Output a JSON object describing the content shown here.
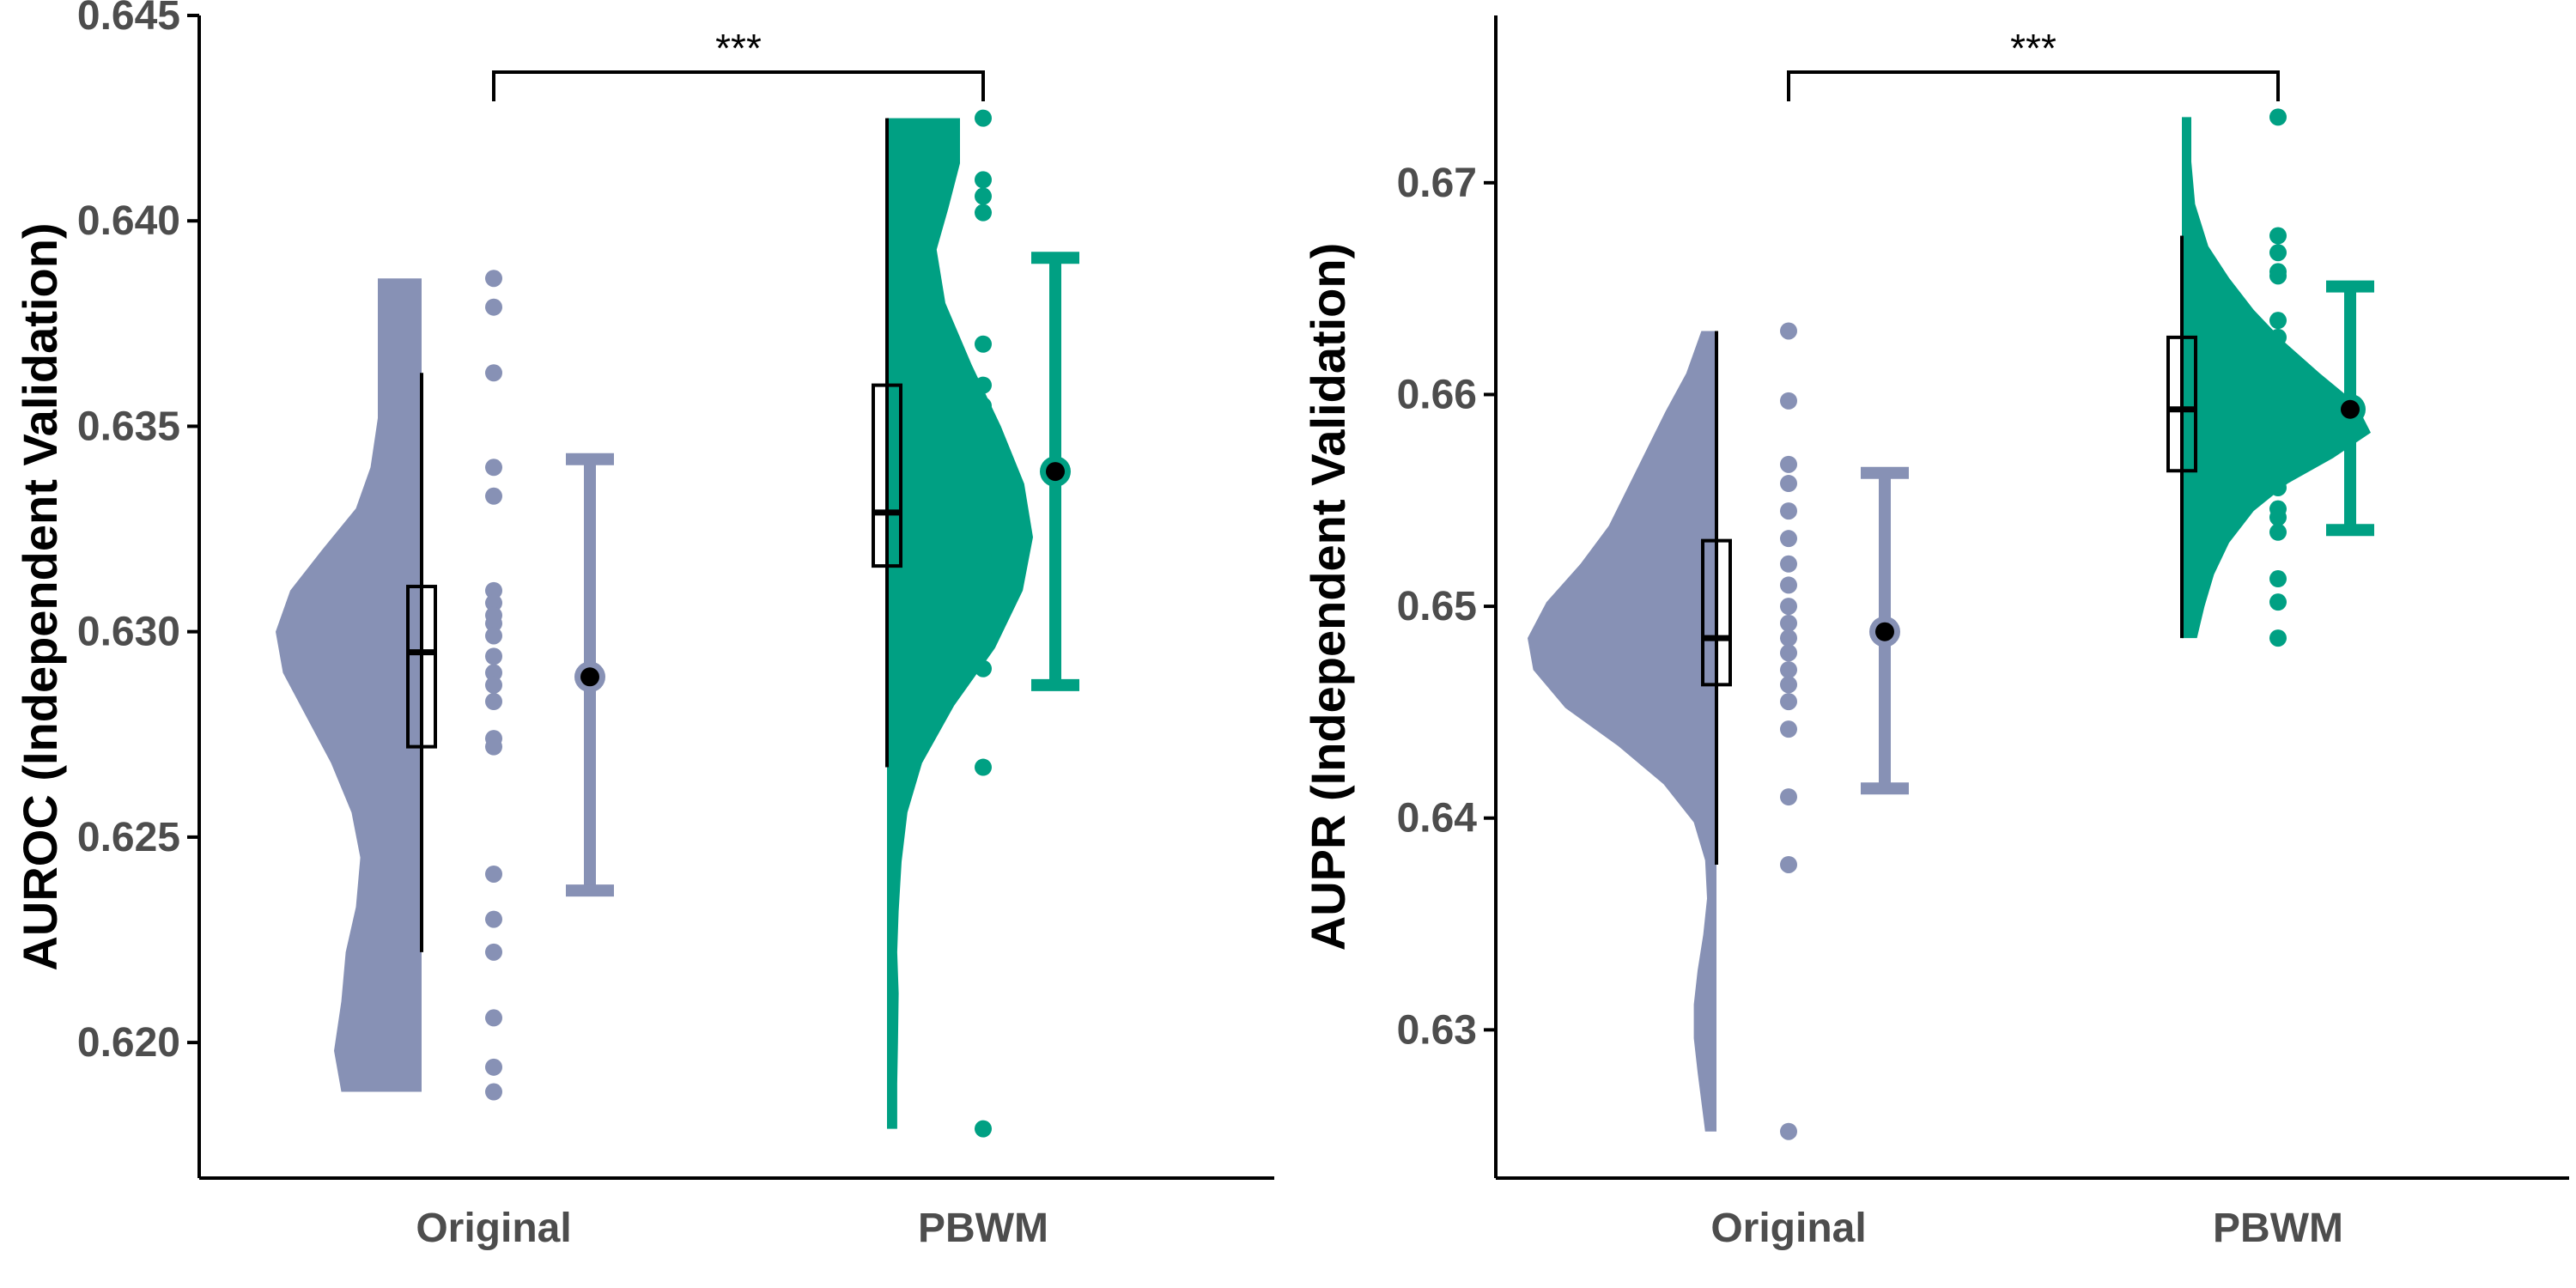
{
  "colors": {
    "original": "#8791b5",
    "pbwm": "#00a083",
    "axis": "#000000",
    "tick_text": "#4d4d4d"
  },
  "chart_data": [
    {
      "type": "raincloud",
      "ylabel": "AUROC (Independent Validation)",
      "categories": [
        "Original",
        "PBWM"
      ],
      "ylim": [
        0.6167,
        0.645
      ],
      "yticks": [
        0.62,
        0.625,
        0.63,
        0.635,
        0.64,
        0.645
      ],
      "ytick_labels": [
        "0.620",
        "0.625",
        "0.630",
        "0.635",
        "0.640",
        "0.645"
      ],
      "grid": false,
      "significance": "***",
      "series": [
        {
          "category": "Original",
          "points": [
            0.6386,
            0.6379,
            0.6363,
            0.634,
            0.6333,
            0.631,
            0.6307,
            0.6304,
            0.6302,
            0.6299,
            0.6294,
            0.629,
            0.6287,
            0.6283,
            0.6274,
            0.6272,
            0.6241,
            0.623,
            0.6222,
            0.6206,
            0.6194,
            0.6188
          ],
          "box": {
            "min": 0.6222,
            "q1": 0.6272,
            "median": 0.6295,
            "q3": 0.6311,
            "max": 0.6363
          },
          "mean": 0.6289,
          "error": [
            0.6237,
            0.6342
          ],
          "density": [
            [
              0.6188,
              0.55
            ],
            [
              0.6198,
              0.6
            ],
            [
              0.621,
              0.55
            ],
            [
              0.6222,
              0.52
            ],
            [
              0.6233,
              0.45
            ],
            [
              0.6245,
              0.42
            ],
            [
              0.6256,
              0.48
            ],
            [
              0.6268,
              0.62
            ],
            [
              0.628,
              0.8
            ],
            [
              0.629,
              0.95
            ],
            [
              0.63,
              1.0
            ],
            [
              0.631,
              0.9
            ],
            [
              0.632,
              0.68
            ],
            [
              0.633,
              0.45
            ],
            [
              0.634,
              0.35
            ],
            [
              0.6352,
              0.3
            ],
            [
              0.6365,
              0.3
            ],
            [
              0.6376,
              0.3
            ],
            [
              0.6386,
              0.3
            ]
          ]
        },
        {
          "category": "PBWM",
          "points": [
            0.6425,
            0.641,
            0.6406,
            0.6402,
            0.637,
            0.636,
            0.6355,
            0.6352,
            0.6348,
            0.6343,
            0.6329,
            0.6326,
            0.6322,
            0.6318,
            0.6315,
            0.6313,
            0.6297,
            0.6291,
            0.6267,
            0.6179
          ],
          "box": {
            "min": 0.6267,
            "q1": 0.6316,
            "median": 0.6329,
            "q3": 0.636,
            "max": 0.6425
          },
          "mean": 0.6339,
          "error": [
            0.6287,
            0.6391
          ],
          "density": [
            [
              0.6179,
              0.07
            ],
            [
              0.619,
              0.07
            ],
            [
              0.62,
              0.075
            ],
            [
              0.6212,
              0.08
            ],
            [
              0.6222,
              0.07
            ],
            [
              0.6232,
              0.08
            ],
            [
              0.6244,
              0.1
            ],
            [
              0.6256,
              0.14
            ],
            [
              0.6268,
              0.24
            ],
            [
              0.6282,
              0.46
            ],
            [
              0.6296,
              0.74
            ],
            [
              0.631,
              0.93
            ],
            [
              0.6323,
              1.0
            ],
            [
              0.6336,
              0.94
            ],
            [
              0.635,
              0.78
            ],
            [
              0.6365,
              0.58
            ],
            [
              0.638,
              0.4
            ],
            [
              0.6393,
              0.34
            ],
            [
              0.6403,
              0.42
            ],
            [
              0.6414,
              0.5
            ],
            [
              0.6425,
              0.5
            ]
          ]
        }
      ]
    },
    {
      "type": "raincloud",
      "ylabel": "AUPR (Independent Validation)",
      "categories": [
        "Original",
        "PBWM"
      ],
      "ylim": [
        0.623,
        0.6779
      ],
      "yticks": [
        0.63,
        0.64,
        0.65,
        0.66,
        0.67
      ],
      "ytick_labels": [
        "0.63",
        "0.64",
        "0.65",
        "0.66",
        "0.67"
      ],
      "grid": false,
      "significance": "***",
      "series": [
        {
          "category": "Original",
          "points": [
            0.663,
            0.6597,
            0.6567,
            0.6558,
            0.6545,
            0.6532,
            0.652,
            0.651,
            0.65,
            0.6492,
            0.6485,
            0.6478,
            0.647,
            0.6463,
            0.6455,
            0.6442,
            0.641,
            0.6378,
            0.6252
          ],
          "box": {
            "min": 0.6378,
            "q1": 0.6463,
            "median": 0.6485,
            "q3": 0.6531,
            "max": 0.663
          },
          "mean": 0.6488,
          "error": [
            0.6414,
            0.6563
          ],
          "density": [
            [
              0.6252,
              0.06
            ],
            [
              0.6266,
              0.08
            ],
            [
              0.628,
              0.1
            ],
            [
              0.6296,
              0.12
            ],
            [
              0.6312,
              0.12
            ],
            [
              0.6328,
              0.1
            ],
            [
              0.6345,
              0.07
            ],
            [
              0.6362,
              0.05
            ],
            [
              0.638,
              0.06
            ],
            [
              0.6398,
              0.12
            ],
            [
              0.6416,
              0.28
            ],
            [
              0.6434,
              0.52
            ],
            [
              0.6452,
              0.8
            ],
            [
              0.647,
              0.97
            ],
            [
              0.6485,
              1.0
            ],
            [
              0.6502,
              0.9
            ],
            [
              0.652,
              0.72
            ],
            [
              0.6538,
              0.57
            ],
            [
              0.6556,
              0.47
            ],
            [
              0.6574,
              0.37
            ],
            [
              0.6592,
              0.27
            ],
            [
              0.661,
              0.16
            ],
            [
              0.663,
              0.08
            ]
          ]
        },
        {
          "category": "PBWM",
          "points": [
            0.6731,
            0.6675,
            0.6667,
            0.6658,
            0.6656,
            0.6635,
            0.6627,
            0.6597,
            0.6593,
            0.6586,
            0.6573,
            0.6565,
            0.6556,
            0.6546,
            0.6542,
            0.6535,
            0.6513,
            0.6502,
            0.6485
          ],
          "box": {
            "min": 0.6485,
            "q1": 0.6564,
            "median": 0.6593,
            "q3": 0.6627,
            "max": 0.6675
          },
          "mean": 0.6593,
          "error": [
            0.6536,
            0.6651
          ],
          "density": [
            [
              0.6485,
              0.08
            ],
            [
              0.65,
              0.12
            ],
            [
              0.6515,
              0.17
            ],
            [
              0.653,
              0.25
            ],
            [
              0.6545,
              0.38
            ],
            [
              0.6558,
              0.56
            ],
            [
              0.657,
              0.8
            ],
            [
              0.6582,
              1.0
            ],
            [
              0.6596,
              0.92
            ],
            [
              0.661,
              0.73
            ],
            [
              0.6625,
              0.54
            ],
            [
              0.664,
              0.38
            ],
            [
              0.6655,
              0.25
            ],
            [
              0.667,
              0.14
            ],
            [
              0.669,
              0.07
            ],
            [
              0.671,
              0.05
            ],
            [
              0.6731,
              0.05
            ]
          ]
        }
      ]
    }
  ]
}
